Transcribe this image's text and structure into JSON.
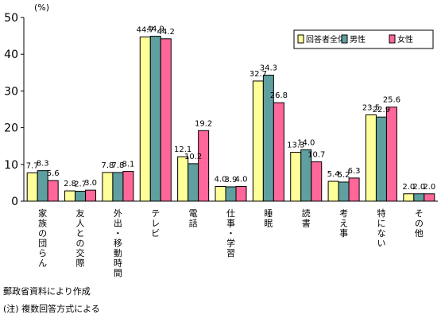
{
  "chart_data": {
    "type": "bar",
    "unit_label": "(%)",
    "ylim": [
      0,
      50
    ],
    "yticks": [
      0,
      10,
      20,
      30,
      40,
      50
    ],
    "grid": false,
    "legend_position": "top-right",
    "categories": [
      "家族の団らん",
      "友人との交際",
      "外出・移動時間",
      "テレビ",
      "電話",
      "仕事・学習",
      "睡眠",
      "読書",
      "考え事",
      "特にない",
      "その他"
    ],
    "series": [
      {
        "name": "回答者全体",
        "color": "#ffff99",
        "values": [
          7.7,
          2.8,
          7.8,
          44.7,
          12.1,
          4.0,
          32.7,
          13.3,
          5.4,
          23.5,
          2.0
        ]
      },
      {
        "name": "男性",
        "color": "#5f9f9f",
        "values": [
          8.3,
          2.7,
          7.8,
          44.9,
          10.2,
          3.9,
          34.3,
          14.0,
          5.2,
          22.9,
          2.0
        ]
      },
      {
        "name": "女性",
        "color": "#ff6699",
        "values": [
          5.6,
          3.0,
          8.1,
          44.2,
          19.2,
          4.0,
          26.8,
          10.7,
          6.3,
          25.6,
          2.0
        ]
      }
    ]
  },
  "notes": {
    "source": "郵政省資料により作成",
    "remark": "(注) 複数回答方式による"
  }
}
